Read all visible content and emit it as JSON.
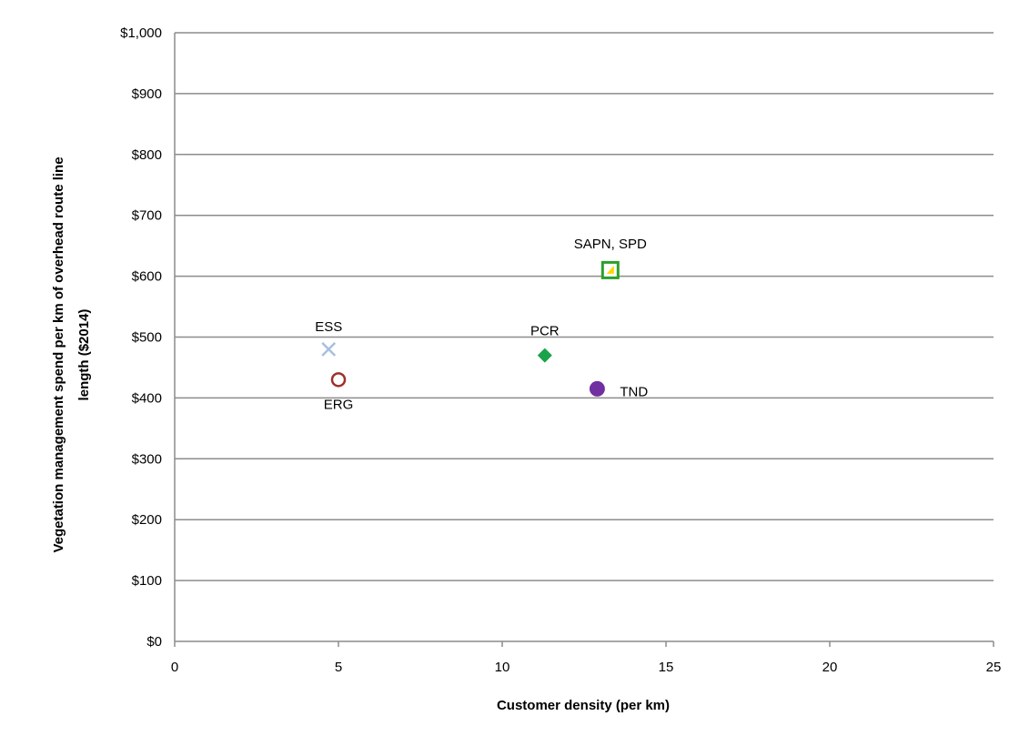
{
  "chart_data": {
    "type": "scatter",
    "title": "",
    "xlabel": "Customer density (per km)",
    "ylabel_line1": "Vegetation management spend per km of overhead route line",
    "ylabel_line2": "length ($2014)",
    "xlim": [
      0,
      25
    ],
    "ylim": [
      0,
      1000
    ],
    "x_ticks": [
      0,
      5,
      10,
      15,
      20,
      25
    ],
    "y_ticks": [
      0,
      100,
      200,
      300,
      400,
      500,
      600,
      700,
      800,
      900,
      1000
    ],
    "x_tick_labels": [
      "0",
      "5",
      "10",
      "15",
      "20",
      "25"
    ],
    "y_tick_labels": [
      "$0",
      "$100",
      "$200",
      "$300",
      "$400",
      "$500",
      "$600",
      "$700",
      "$800",
      "$900",
      "$1,000"
    ],
    "grid": "horizontal",
    "legend": "none",
    "points": [
      {
        "label": "ESS",
        "x": 4.7,
        "y": 480,
        "marker": "x",
        "color": "#a9bfe0"
      },
      {
        "label": "ERG",
        "x": 5.0,
        "y": 430,
        "marker": "circle-open",
        "color": "#a0302a"
      },
      {
        "label": "PCR",
        "x": 11.3,
        "y": 470,
        "marker": "diamond",
        "color": "#1aa34a"
      },
      {
        "label": "TND",
        "x": 12.9,
        "y": 415,
        "marker": "circle",
        "color": "#7030a0"
      },
      {
        "label": "SAPN, SPD",
        "x": 13.3,
        "y": 610,
        "marker": "square-open-triangle",
        "color": "#2ca02c",
        "accent": "#ffd400"
      }
    ]
  }
}
